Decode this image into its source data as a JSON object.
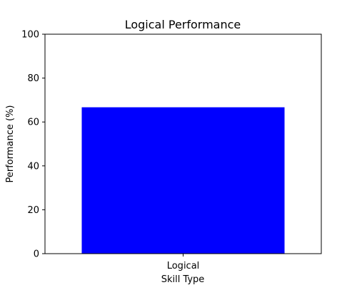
{
  "chart_data": {
    "type": "bar",
    "title": "Logical Performance",
    "xlabel": "Skill Type",
    "ylabel": "Performance (%)",
    "categories": [
      "Logical"
    ],
    "values": [
      66.7
    ],
    "ylim": [
      0,
      100
    ],
    "yticks": [
      0,
      20,
      40,
      60,
      80,
      100
    ],
    "grid": false,
    "legend": "none",
    "bar_color": "#0000ff"
  }
}
